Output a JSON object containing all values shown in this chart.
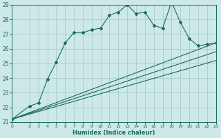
{
  "xlabel": "Humidex (Indice chaleur)",
  "bg_color": "#cce8e8",
  "grid_color": "#aacccc",
  "line_color": "#1a6b5a",
  "xlim": [
    0,
    23
  ],
  "ylim": [
    21,
    29
  ],
  "xticks": [
    0,
    2,
    3,
    4,
    5,
    6,
    7,
    8,
    9,
    10,
    11,
    12,
    13,
    14,
    15,
    16,
    17,
    18,
    19,
    20,
    21,
    22,
    23
  ],
  "yticks": [
    21,
    22,
    23,
    24,
    25,
    26,
    27,
    28,
    29
  ],
  "series1_x": [
    0,
    2,
    3,
    4,
    5,
    6,
    7,
    8,
    9,
    10,
    11,
    12,
    13,
    14,
    15,
    16,
    17,
    18,
    19,
    20,
    21,
    22,
    23
  ],
  "series1_y": [
    21.2,
    22.1,
    22.3,
    23.9,
    25.1,
    26.4,
    27.1,
    27.1,
    27.3,
    27.4,
    28.3,
    28.5,
    29.0,
    28.4,
    28.5,
    27.6,
    27.4,
    29.2,
    27.8,
    26.7,
    26.2,
    26.3,
    26.4
  ],
  "series2_x": [
    0,
    23
  ],
  "series2_y": [
    21.2,
    26.4
  ],
  "series3_x": [
    0,
    23
  ],
  "series3_y": [
    21.2,
    25.2
  ],
  "series4_x": [
    0,
    23
  ],
  "series4_y": [
    21.2,
    25.8
  ]
}
